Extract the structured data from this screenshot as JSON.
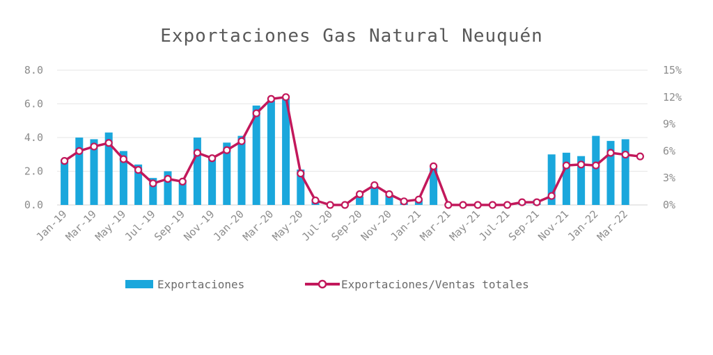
{
  "chart_data": {
    "type": "bar",
    "title": "Exportaciones Gas Natural Neuquén",
    "categories": [
      "Jan-19",
      "Feb-19",
      "Mar-19",
      "Apr-19",
      "May-19",
      "Jun-19",
      "Jul-19",
      "Aug-19",
      "Sep-19",
      "Oct-19",
      "Nov-19",
      "Dec-19",
      "Jan-20",
      "Feb-20",
      "Mar-20",
      "Apr-20",
      "May-20",
      "Jun-20",
      "Jul-20",
      "Aug-20",
      "Sep-20",
      "Oct-20",
      "Nov-20",
      "Dec-20",
      "Jan-21",
      "Feb-21",
      "Mar-21",
      "Apr-21",
      "May-21",
      "Jun-21",
      "Jul-21",
      "Aug-21",
      "Sep-21",
      "Oct-21",
      "Nov-21",
      "Dec-21",
      "Jan-22",
      "Feb-22",
      "Mar-22",
      "Apr-22"
    ],
    "x_tick_labels": [
      "Jan-19",
      "Mar-19",
      "May-19",
      "Jul-19",
      "Sep-19",
      "Nov-19",
      "Jan-20",
      "Mar-20",
      "May-20",
      "Jul-20",
      "Sep-20",
      "Nov-20",
      "Jan-21",
      "Mar-21",
      "May-21",
      "Jul-21",
      "Sep-21",
      "Nov-21",
      "Jan-22",
      "Mar-22"
    ],
    "series": [
      {
        "name": "Exportaciones",
        "type": "bar",
        "axis": "left",
        "color": "#1aa7dc",
        "values": [
          2.7,
          4.0,
          3.9,
          4.3,
          3.2,
          2.4,
          1.6,
          2.0,
          1.5,
          4.0,
          2.8,
          3.7,
          4.1,
          5.9,
          6.2,
          6.3,
          2.1,
          0.3,
          0.0,
          0.0,
          0.5,
          1.1,
          0.6,
          0.2,
          0.3,
          2.2,
          0.0,
          0.0,
          0.0,
          0.0,
          0.0,
          0.1,
          0.3,
          3.0,
          3.1,
          2.9,
          4.1,
          3.8,
          3.9,
          0
        ]
      },
      {
        "name": "Exportaciones/Ventas totales",
        "type": "line",
        "axis": "right",
        "color": "#c2185b",
        "values": [
          4.9,
          6.0,
          6.5,
          6.9,
          5.1,
          3.9,
          2.4,
          2.9,
          2.6,
          5.8,
          5.2,
          6.1,
          7.1,
          10.2,
          11.8,
          12.0,
          3.5,
          0.5,
          0.0,
          0.0,
          1.2,
          2.2,
          1.2,
          0.4,
          0.6,
          4.3,
          0.0,
          0.0,
          0.0,
          0.0,
          0.0,
          0.3,
          0.3,
          1.0,
          4.4,
          4.5,
          4.4,
          5.8,
          5.6,
          5.4
        ]
      }
    ],
    "y_left": {
      "min": 0,
      "max": 8,
      "ticks": [
        0,
        2,
        4,
        6,
        8
      ],
      "tick_labels": [
        "0.0",
        "2.0",
        "4.0",
        "6.0",
        "8.0"
      ]
    },
    "y_right": {
      "min": 0,
      "max": 15,
      "ticks": [
        0,
        3,
        6,
        9,
        12,
        15
      ],
      "tick_labels": [
        "0%",
        "3%",
        "6%",
        "9%",
        "12%",
        "15%"
      ]
    },
    "grid": true,
    "legend_position": "bottom"
  }
}
